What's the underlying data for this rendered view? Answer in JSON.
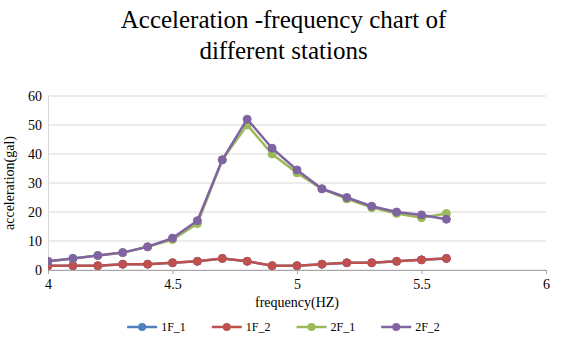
{
  "chart_data": {
    "type": "line",
    "title": "Acceleration -frequency chart of different stations",
    "x_label": "frequency(HZ)",
    "y_label": "acceleration(gal)",
    "x": [
      4.0,
      4.1,
      4.2,
      4.3,
      4.4,
      4.5,
      4.6,
      4.7,
      4.8,
      4.9,
      5.0,
      5.1,
      5.2,
      5.3,
      5.4,
      5.5,
      5.6
    ],
    "series": [
      {
        "name": "1F_1",
        "color": "#4f81bd",
        "marker": "circle",
        "values": [
          1.5,
          1.5,
          1.5,
          2,
          2,
          2.5,
          3,
          4,
          3,
          1.5,
          1.5,
          2,
          2.5,
          2.5,
          3,
          3.5,
          4
        ]
      },
      {
        "name": "1F_2",
        "color": "#c0504d",
        "marker": "circle",
        "values": [
          1.5,
          1.5,
          1.5,
          2,
          2,
          2.5,
          3,
          4,
          3,
          1.5,
          1.5,
          2,
          2.5,
          2.5,
          3,
          3.5,
          4
        ]
      },
      {
        "name": "2F_1",
        "color": "#9bbb59",
        "marker": "circle",
        "values": [
          3,
          4,
          5,
          6,
          8,
          10.5,
          16,
          38,
          50,
          40,
          33.5,
          28,
          24.5,
          21.5,
          19.5,
          18,
          19.5
        ]
      },
      {
        "name": "2F_2",
        "color": "#8064a2",
        "marker": "circle",
        "values": [
          3,
          4,
          5,
          6,
          8,
          11,
          17,
          38,
          52,
          42,
          34.5,
          28,
          25,
          22,
          20,
          19,
          17.5
        ]
      }
    ],
    "xlim": [
      4,
      6
    ],
    "xticks": [
      4,
      4.5,
      5,
      5.5,
      6
    ],
    "ylim": [
      0,
      60
    ],
    "yticks": [
      0,
      10,
      20,
      30,
      40,
      50,
      60
    ],
    "grid": true,
    "legend": "bottom"
  }
}
